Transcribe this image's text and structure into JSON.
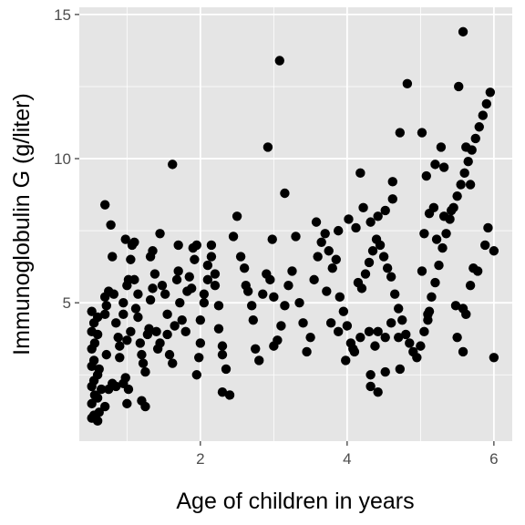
{
  "chart_data": {
    "type": "scatter",
    "title": "",
    "xlabel": "Age of children in years",
    "ylabel": "Immunoglobulin G (g/liter)",
    "xlim": [
      0.35,
      6.25
    ],
    "ylim": [
      0.2,
      15.25
    ],
    "x_ticks": [
      2,
      4,
      6
    ],
    "x_tick_labels": [
      "2",
      "4",
      "6"
    ],
    "y_ticks": [
      5,
      10,
      15
    ],
    "y_tick_labels": [
      "5",
      "10",
      "15"
    ],
    "grid": true,
    "colors": {
      "panel": "#e5e5e5",
      "grid": "#ffffff",
      "point": "#000000",
      "tick_text": "#4d4d4d"
    },
    "points": [
      [
        0.52,
        1.0
      ],
      [
        0.55,
        1.1
      ],
      [
        0.6,
        0.9
      ],
      [
        0.62,
        1.2
      ],
      [
        0.52,
        1.5
      ],
      [
        0.56,
        1.8
      ],
      [
        0.6,
        1.7
      ],
      [
        0.65,
        2.0
      ],
      [
        0.7,
        1.4
      ],
      [
        0.52,
        2.1
      ],
      [
        0.55,
        2.3
      ],
      [
        0.6,
        2.5
      ],
      [
        0.52,
        2.8
      ],
      [
        0.55,
        3.0
      ],
      [
        0.62,
        2.7
      ],
      [
        0.52,
        3.4
      ],
      [
        0.56,
        3.6
      ],
      [
        0.6,
        3.9
      ],
      [
        0.52,
        4.0
      ],
      [
        0.55,
        4.3
      ],
      [
        0.6,
        4.5
      ],
      [
        0.52,
        4.7
      ],
      [
        0.7,
        4.6
      ],
      [
        0.72,
        4.9
      ],
      [
        0.7,
        5.2
      ],
      [
        0.75,
        5.4
      ],
      [
        0.72,
        3.2
      ],
      [
        0.75,
        2.0
      ],
      [
        0.8,
        2.2
      ],
      [
        0.85,
        2.1
      ],
      [
        0.7,
        8.4
      ],
      [
        0.78,
        7.7
      ],
      [
        0.8,
        6.6
      ],
      [
        0.82,
        5.3
      ],
      [
        0.85,
        4.3
      ],
      [
        0.88,
        3.8
      ],
      [
        0.9,
        3.5
      ],
      [
        0.9,
        3.1
      ],
      [
        0.95,
        4.6
      ],
      [
        0.95,
        5.0
      ],
      [
        0.95,
        2.2
      ],
      [
        0.98,
        2.4
      ],
      [
        1.0,
        1.5
      ],
      [
        1.02,
        2.0
      ],
      [
        1.0,
        3.7
      ],
      [
        1.05,
        4.0
      ],
      [
        1.0,
        5.6
      ],
      [
        1.02,
        5.8
      ],
      [
        1.05,
        6.5
      ],
      [
        1.07,
        7.0
      ],
      [
        0.98,
        7.2
      ],
      [
        1.1,
        7.1
      ],
      [
        1.1,
        5.8
      ],
      [
        1.15,
        5.3
      ],
      [
        1.12,
        4.8
      ],
      [
        1.15,
        4.5
      ],
      [
        1.18,
        3.6
      ],
      [
        1.2,
        3.2
      ],
      [
        1.22,
        2.9
      ],
      [
        1.25,
        2.6
      ],
      [
        1.2,
        1.6
      ],
      [
        1.25,
        1.4
      ],
      [
        1.28,
        3.9
      ],
      [
        1.3,
        4.1
      ],
      [
        1.32,
        5.1
      ],
      [
        1.35,
        5.5
      ],
      [
        1.32,
        6.6
      ],
      [
        1.35,
        6.8
      ],
      [
        1.38,
        6.0
      ],
      [
        1.4,
        4.0
      ],
      [
        1.42,
        3.4
      ],
      [
        1.45,
        3.6
      ],
      [
        1.45,
        7.4
      ],
      [
        1.48,
        5.6
      ],
      [
        1.52,
        5.3
      ],
      [
        1.55,
        4.6
      ],
      [
        1.55,
        3.9
      ],
      [
        1.58,
        3.2
      ],
      [
        1.62,
        2.9
      ],
      [
        1.65,
        4.2
      ],
      [
        1.68,
        5.8
      ],
      [
        1.7,
        6.1
      ],
      [
        1.7,
        7.0
      ],
      [
        1.62,
        9.8
      ],
      [
        1.72,
        5.0
      ],
      [
        1.75,
        4.4
      ],
      [
        1.8,
        4.0
      ],
      [
        1.82,
        5.4
      ],
      [
        1.85,
        5.9
      ],
      [
        1.88,
        5.5
      ],
      [
        1.9,
        6.9
      ],
      [
        1.92,
        6.5
      ],
      [
        1.95,
        7.0
      ],
      [
        1.95,
        2.5
      ],
      [
        1.98,
        3.1
      ],
      [
        2.0,
        3.6
      ],
      [
        2.0,
        4.4
      ],
      [
        2.05,
        5.0
      ],
      [
        2.05,
        5.3
      ],
      [
        2.1,
        5.8
      ],
      [
        2.1,
        6.3
      ],
      [
        2.15,
        6.6
      ],
      [
        2.15,
        7.0
      ],
      [
        2.2,
        6.0
      ],
      [
        2.2,
        5.6
      ],
      [
        2.25,
        4.9
      ],
      [
        2.25,
        4.1
      ],
      [
        2.3,
        3.5
      ],
      [
        2.3,
        3.2
      ],
      [
        2.35,
        2.7
      ],
      [
        2.4,
        1.8
      ],
      [
        2.3,
        1.9
      ],
      [
        2.45,
        7.3
      ],
      [
        2.5,
        8.0
      ],
      [
        2.55,
        6.6
      ],
      [
        2.6,
        6.2
      ],
      [
        2.62,
        5.6
      ],
      [
        2.65,
        5.4
      ],
      [
        2.7,
        4.9
      ],
      [
        2.72,
        4.4
      ],
      [
        2.75,
        3.4
      ],
      [
        2.8,
        3.0
      ],
      [
        2.85,
        5.3
      ],
      [
        2.9,
        6.0
      ],
      [
        2.95,
        5.8
      ],
      [
        2.98,
        7.2
      ],
      [
        3.0,
        3.5
      ],
      [
        3.05,
        3.7
      ],
      [
        3.1,
        4.2
      ],
      [
        3.15,
        4.9
      ],
      [
        3.2,
        5.6
      ],
      [
        3.25,
        6.1
      ],
      [
        3.3,
        7.3
      ],
      [
        3.35,
        5.0
      ],
      [
        3.4,
        4.3
      ],
      [
        3.45,
        3.3
      ],
      [
        3.5,
        3.8
      ],
      [
        3.55,
        5.8
      ],
      [
        3.6,
        6.6
      ],
      [
        3.65,
        7.1
      ],
      [
        3.7,
        7.4
      ],
      [
        3.75,
        6.8
      ],
      [
        3.8,
        6.2
      ],
      [
        3.85,
        6.5
      ],
      [
        3.9,
        5.2
      ],
      [
        3.95,
        4.7
      ],
      [
        4.0,
        4.2
      ],
      [
        4.05,
        3.6
      ],
      [
        4.1,
        3.3
      ],
      [
        4.15,
        5.7
      ],
      [
        4.2,
        5.5
      ],
      [
        4.25,
        6.0
      ],
      [
        4.3,
        6.4
      ],
      [
        4.35,
        6.8
      ],
      [
        4.4,
        7.2
      ],
      [
        4.45,
        7.0
      ],
      [
        4.5,
        6.6
      ],
      [
        4.55,
        6.2
      ],
      [
        4.6,
        5.9
      ],
      [
        4.65,
        5.3
      ],
      [
        4.7,
        4.8
      ],
      [
        4.75,
        4.4
      ],
      [
        4.8,
        3.9
      ],
      [
        4.85,
        3.6
      ],
      [
        4.9,
        3.3
      ],
      [
        4.95,
        3.1
      ],
      [
        5.0,
        3.5
      ],
      [
        5.05,
        4.0
      ],
      [
        5.1,
        4.6
      ],
      [
        5.15,
        5.2
      ],
      [
        5.2,
        5.7
      ],
      [
        5.25,
        6.3
      ],
      [
        5.3,
        6.9
      ],
      [
        5.35,
        7.4
      ],
      [
        5.4,
        7.9
      ],
      [
        5.45,
        8.3
      ],
      [
        5.5,
        8.7
      ],
      [
        5.55,
        9.1
      ],
      [
        5.6,
        9.5
      ],
      [
        5.65,
        9.9
      ],
      [
        5.7,
        10.3
      ],
      [
        5.75,
        10.7
      ],
      [
        5.8,
        11.1
      ],
      [
        5.85,
        11.5
      ],
      [
        5.9,
        11.9
      ],
      [
        5.95,
        12.3
      ],
      [
        3.0,
        5.2
      ],
      [
        3.08,
        13.4
      ],
      [
        2.92,
        10.4
      ],
      [
        3.15,
        8.8
      ],
      [
        3.58,
        7.8
      ],
      [
        3.88,
        7.5
      ],
      [
        4.18,
        9.5
      ],
      [
        4.62,
        9.2
      ],
      [
        4.82,
        12.6
      ],
      [
        4.72,
        10.9
      ],
      [
        5.02,
        10.9
      ],
      [
        5.08,
        9.4
      ],
      [
        5.2,
        9.8
      ],
      [
        5.28,
        10.4
      ],
      [
        5.52,
        12.5
      ],
      [
        5.58,
        14.4
      ],
      [
        5.62,
        10.4
      ],
      [
        5.68,
        9.1
      ],
      [
        5.88,
        7.0
      ],
      [
        5.92,
        7.6
      ],
      [
        6.0,
        6.8
      ],
      [
        6.0,
        3.1
      ],
      [
        5.58,
        3.3
      ],
      [
        5.5,
        3.8
      ],
      [
        5.48,
        4.9
      ],
      [
        5.58,
        4.8
      ],
      [
        5.62,
        4.6
      ],
      [
        5.68,
        5.6
      ],
      [
        5.72,
        6.2
      ],
      [
        5.78,
        6.1
      ],
      [
        5.1,
        4.4
      ],
      [
        5.12,
        4.7
      ],
      [
        5.22,
        7.2
      ],
      [
        5.18,
        8.3
      ],
      [
        5.12,
        8.1
      ],
      [
        5.32,
        8.0
      ],
      [
        5.42,
        8.2
      ],
      [
        5.32,
        9.7
      ],
      [
        5.05,
        7.4
      ],
      [
        5.02,
        6.1
      ],
      [
        4.6,
        4.3
      ],
      [
        4.42,
        4.0
      ],
      [
        4.38,
        3.5
      ],
      [
        4.32,
        2.5
      ],
      [
        4.32,
        2.1
      ],
      [
        4.42,
        1.9
      ],
      [
        4.52,
        2.6
      ],
      [
        4.72,
        2.7
      ],
      [
        4.7,
        3.8
      ],
      [
        4.52,
        3.8
      ],
      [
        4.3,
        4.0
      ],
      [
        4.18,
        3.8
      ],
      [
        4.08,
        3.4
      ],
      [
        3.98,
        3.0
      ],
      [
        3.88,
        4.0
      ],
      [
        3.78,
        4.3
      ],
      [
        3.72,
        5.4
      ],
      [
        4.02,
        7.9
      ],
      [
        4.12,
        7.6
      ],
      [
        4.22,
        8.3
      ],
      [
        4.32,
        7.8
      ],
      [
        4.42,
        8.0
      ],
      [
        4.52,
        8.2
      ],
      [
        4.62,
        8.6
      ]
    ]
  }
}
